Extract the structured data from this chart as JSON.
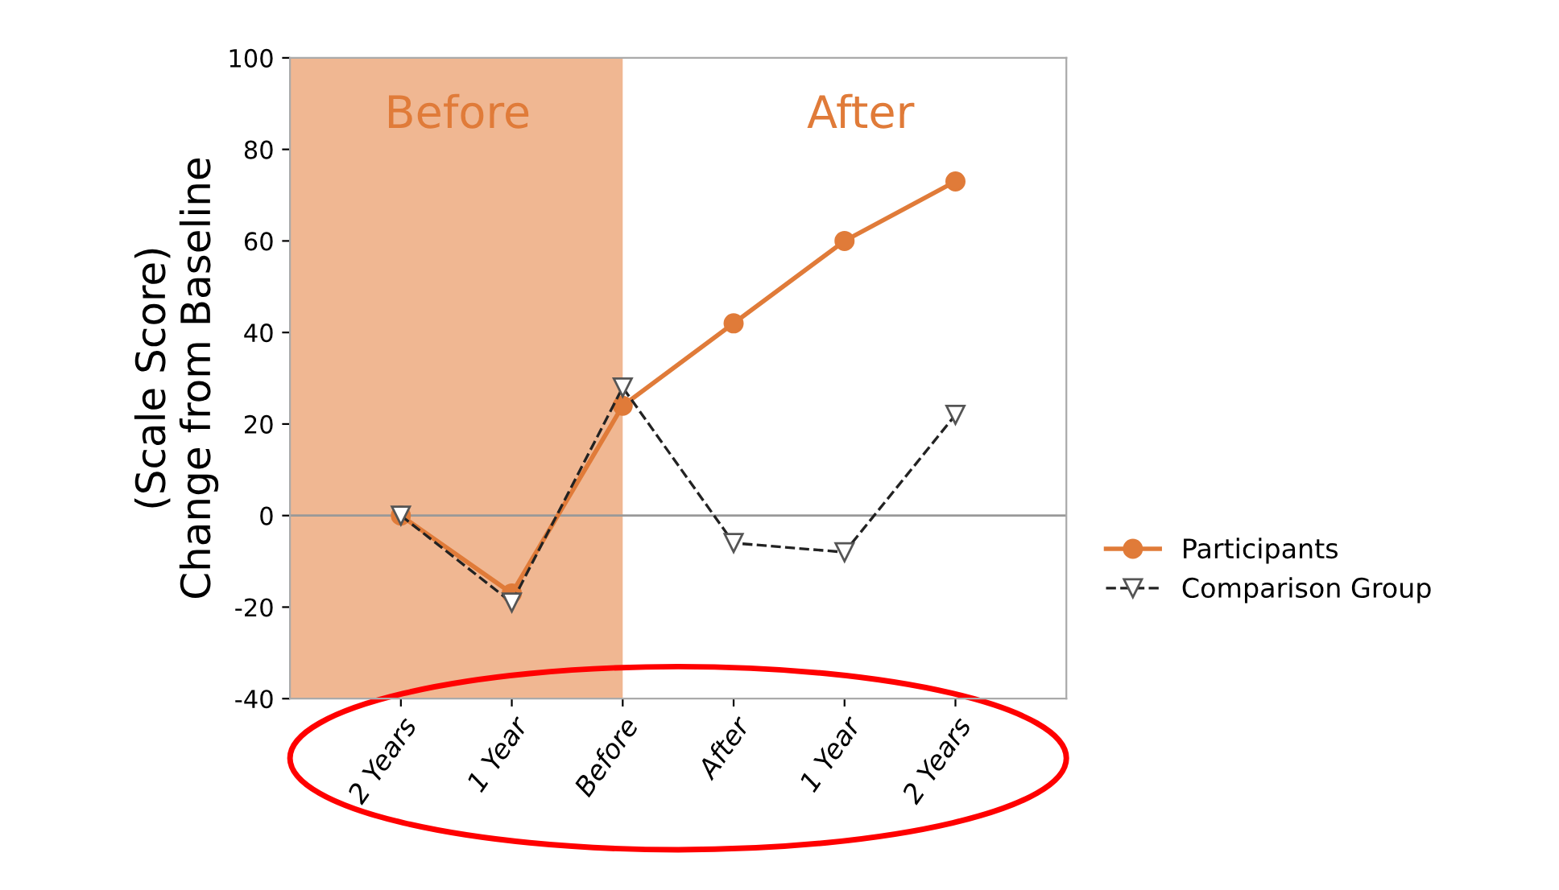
{
  "chart_data": {
    "type": "line",
    "ylabel": "(Scale Score)\nChange from Baseline",
    "categories": [
      "2 Years",
      "1 Year",
      "Before",
      "After",
      "1 Year",
      "2 Years"
    ],
    "series": [
      {
        "name": "Participants",
        "color": "#e07b39",
        "values": [
          0,
          -17,
          24,
          42,
          60,
          73
        ],
        "marker": "circle",
        "line_style": "solid"
      },
      {
        "name": "Comparison Group",
        "color": "#222222",
        "values": [
          0,
          -19,
          28,
          -6,
          -8,
          22
        ],
        "marker": "triangle",
        "line_style": "dashed"
      }
    ],
    "ylim": [
      -40,
      100
    ],
    "yticks": [
      -40,
      -20,
      0,
      20,
      40,
      60,
      80,
      100
    ],
    "ref_lines": [
      {
        "axis": "y",
        "value": 0,
        "color": "#999999"
      }
    ],
    "annotations": [
      "Before",
      "After"
    ],
    "grid": false,
    "legend": "right"
  }
}
